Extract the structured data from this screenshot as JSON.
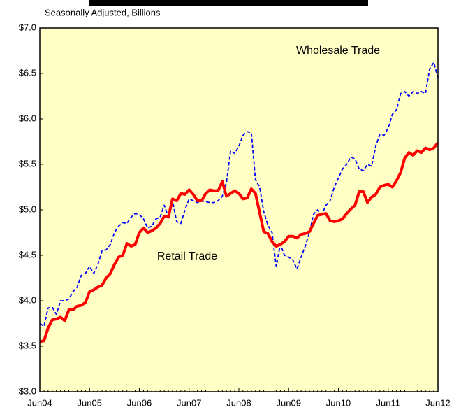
{
  "chart_data": {
    "type": "line",
    "subtitle": "Seasonally Adjusted, Billions",
    "annotations": [
      {
        "text": "Wholesale Trade",
        "series": 1
      },
      {
        "text": "Retail Trade",
        "series": 0
      }
    ],
    "categories": [
      "Jun04",
      null,
      null,
      null,
      null,
      null,
      null,
      null,
      null,
      null,
      null,
      null,
      "Jun05",
      null,
      null,
      null,
      null,
      null,
      null,
      null,
      null,
      null,
      null,
      null,
      "Jun06",
      null,
      null,
      null,
      null,
      null,
      null,
      null,
      null,
      null,
      null,
      null,
      "Jun07",
      null,
      null,
      null,
      null,
      null,
      null,
      null,
      null,
      null,
      null,
      null,
      "Jun08",
      null,
      null,
      null,
      null,
      null,
      null,
      null,
      null,
      null,
      null,
      null,
      "Jun09",
      null,
      null,
      null,
      null,
      null,
      null,
      null,
      null,
      null,
      null,
      null,
      "Jun10",
      null,
      null,
      null,
      null,
      null,
      null,
      null,
      null,
      null,
      null,
      null,
      "Jun11",
      null,
      null,
      null,
      null,
      null,
      null,
      null,
      null,
      null,
      null,
      null,
      "Jun12"
    ],
    "series": [
      {
        "name": "Retail Trade",
        "color": "#ff0000",
        "line_style": "solid",
        "values": [
          3.55,
          3.56,
          3.7,
          3.79,
          3.8,
          3.82,
          3.78,
          3.9,
          3.9,
          3.94,
          3.95,
          3.98,
          4.1,
          4.12,
          4.15,
          4.17,
          4.25,
          4.3,
          4.4,
          4.48,
          4.5,
          4.63,
          4.6,
          4.62,
          4.75,
          4.8,
          4.75,
          4.77,
          4.8,
          4.85,
          4.93,
          4.92,
          5.12,
          5.1,
          5.18,
          5.17,
          5.22,
          5.17,
          5.1,
          5.1,
          5.18,
          5.22,
          5.21,
          5.21,
          5.31,
          5.15,
          5.18,
          5.21,
          5.18,
          5.12,
          5.13,
          5.23,
          5.18,
          4.97,
          4.76,
          4.74,
          4.65,
          4.6,
          4.62,
          4.65,
          4.71,
          4.71,
          4.69,
          4.73,
          4.74,
          4.76,
          4.85,
          4.94,
          4.95,
          4.96,
          4.88,
          4.87,
          4.88,
          4.9,
          4.96,
          5.01,
          5.05,
          5.2,
          5.2,
          5.08,
          5.14,
          5.17,
          5.25,
          5.27,
          5.28,
          5.25,
          5.32,
          5.41,
          5.57,
          5.63,
          5.6,
          5.65,
          5.63,
          5.68,
          5.66,
          5.68,
          5.74
        ]
      },
      {
        "name": "Wholesale Trade",
        "color": "#0000ff",
        "line_style": "dashed",
        "values": [
          3.75,
          3.72,
          3.92,
          3.93,
          3.85,
          4.0,
          4.0,
          4.02,
          4.1,
          4.15,
          4.28,
          4.3,
          4.38,
          4.3,
          4.4,
          4.55,
          4.56,
          4.62,
          4.75,
          4.82,
          4.86,
          4.85,
          4.92,
          4.96,
          4.95,
          4.9,
          4.8,
          4.82,
          4.9,
          4.92,
          5.05,
          4.92,
          5.1,
          4.87,
          4.85,
          5.0,
          5.12,
          5.1,
          5.08,
          5.1,
          5.09,
          5.08,
          5.08,
          5.1,
          5.15,
          5.3,
          5.65,
          5.62,
          5.7,
          5.82,
          5.86,
          5.85,
          5.33,
          5.25,
          4.98,
          4.83,
          4.75,
          4.38,
          4.62,
          4.5,
          4.48,
          4.45,
          4.35,
          4.48,
          4.6,
          4.75,
          4.95,
          5.0,
          4.95,
          5.05,
          5.1,
          5.25,
          5.35,
          5.45,
          5.5,
          5.58,
          5.56,
          5.45,
          5.43,
          5.5,
          5.48,
          5.7,
          5.83,
          5.82,
          5.9,
          6.05,
          6.1,
          6.28,
          6.3,
          6.25,
          6.3,
          6.28,
          6.3,
          6.28,
          6.55,
          6.62,
          6.45
        ]
      }
    ],
    "ylim": [
      3.0,
      7.0
    ],
    "yticks": [
      {
        "value": 3.0,
        "label": "$3.0"
      },
      {
        "value": 3.5,
        "label": "$3.5"
      },
      {
        "value": 4.0,
        "label": "$4.0"
      },
      {
        "value": 4.5,
        "label": "$4.5"
      },
      {
        "value": 5.0,
        "label": "$5.0"
      },
      {
        "value": 5.5,
        "label": "$5.5"
      },
      {
        "value": 6.0,
        "label": "$6.0"
      },
      {
        "value": 6.5,
        "label": "$6.5"
      },
      {
        "value": 7.0,
        "label": "$7.0"
      }
    ],
    "plot_background": "#ffffc6"
  }
}
